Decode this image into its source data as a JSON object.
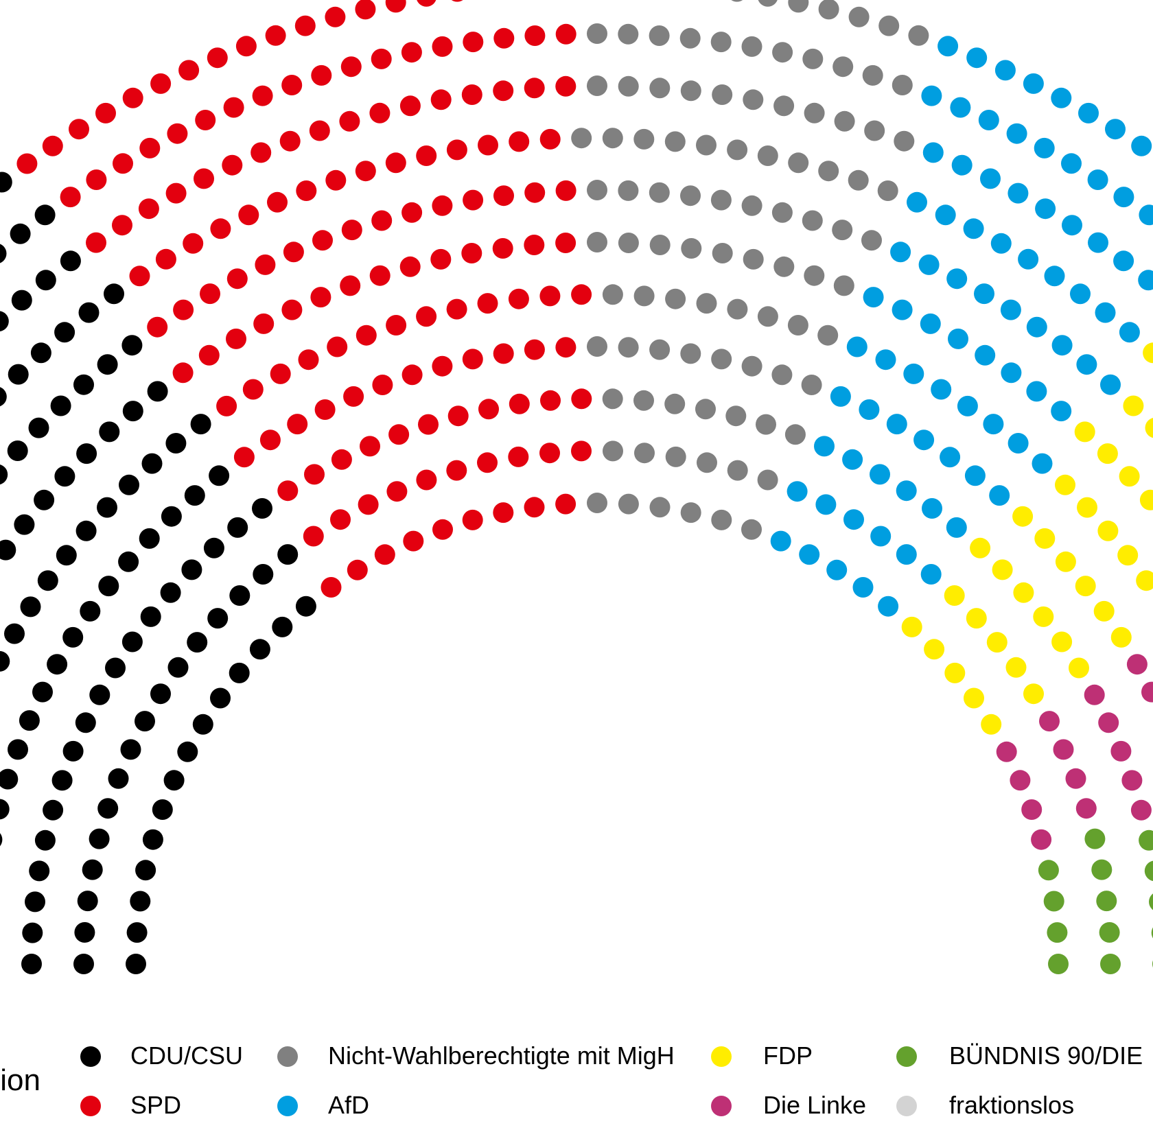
{
  "legend": {
    "title": "tion",
    "entries": [
      {
        "label": "CDU/CSU",
        "color": "#000000"
      },
      {
        "label": "SPD",
        "color": "#E3000F"
      },
      {
        "label": "Nicht-Wahlberechtigte mit MigH",
        "color": "#808080"
      },
      {
        "label": "AfD",
        "color": "#009EE0"
      },
      {
        "label": "FDP",
        "color": "#FFED00"
      },
      {
        "label": "Die Linke",
        "color": "#BE3075"
      },
      {
        "label": "BÜNDNIS 90/DIE",
        "color": "#64A12D"
      },
      {
        "label": "fraktionslos",
        "color": "#D3D3D3"
      }
    ]
  },
  "chart_data": {
    "type": "parliament",
    "description_of_units": "seats",
    "rows": 11,
    "series": [
      {
        "name": "CDU/CSU",
        "color": "#000000",
        "values": [
          246
        ]
      },
      {
        "name": "SPD",
        "color": "#E3000F",
        "values": [
          153
        ]
      },
      {
        "name": "Nicht-Wahlberechtigte mit MigH",
        "color": "#808080",
        "values": [
          99
        ]
      },
      {
        "name": "AfD",
        "color": "#009EE0",
        "values": [
          92
        ]
      },
      {
        "name": "FDP",
        "color": "#FFED00",
        "values": [
          80
        ]
      },
      {
        "name": "Die Linke",
        "color": "#BE3075",
        "values": [
          69
        ]
      },
      {
        "name": "BÜNDNIS 90/DIE",
        "color": "#64A12D",
        "values": [
          67
        ]
      },
      {
        "name": "fraktionslos",
        "color": "#D3D3D3",
        "values": [
          2
        ]
      }
    ]
  }
}
